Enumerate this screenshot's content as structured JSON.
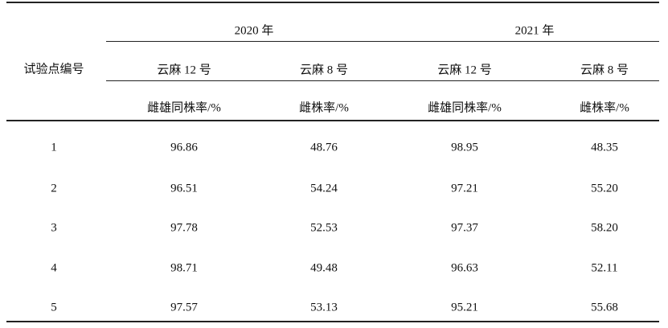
{
  "table": {
    "row_label": "试验点编号",
    "years": [
      "2020 年",
      "2021 年"
    ],
    "varieties": [
      "云麻 12 号",
      "云麻 8 号",
      "云麻 12 号",
      "云麻 8 号"
    ],
    "metrics": [
      "雌雄同株率/%",
      "雌株率/%",
      "雌雄同株率/%",
      "雌株率/%"
    ],
    "rows": [
      [
        "1",
        "96.86",
        "48.76",
        "98.95",
        "48.35"
      ],
      [
        "2",
        "96.51",
        "54.24",
        "97.21",
        "55.20"
      ],
      [
        "3",
        "97.78",
        "52.53",
        "97.37",
        "58.20"
      ],
      [
        "4",
        "98.71",
        "49.48",
        "96.63",
        "52.11"
      ],
      [
        "5",
        "97.57",
        "53.13",
        "95.21",
        "55.68"
      ]
    ]
  }
}
